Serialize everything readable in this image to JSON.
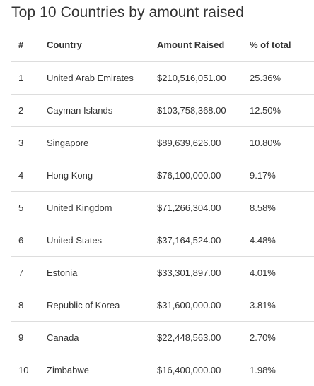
{
  "title": "Top 10 Countries by amount raised",
  "table": {
    "headers": [
      "#",
      "Country",
      "Amount Raised",
      "% of total"
    ],
    "rows": [
      [
        "1",
        "United Arab Emirates",
        "$210,516,051.00",
        "25.36%"
      ],
      [
        "2",
        "Cayman Islands",
        "$103,758,368.00",
        "12.50%"
      ],
      [
        "3",
        "Singapore",
        "$89,639,626.00",
        "10.80%"
      ],
      [
        "4",
        "Hong Kong",
        "$76,100,000.00",
        "9.17%"
      ],
      [
        "5",
        "United Kingdom",
        "$71,266,304.00",
        "8.58%"
      ],
      [
        "6",
        "United States",
        "$37,164,524.00",
        "4.48%"
      ],
      [
        "7",
        "Estonia",
        "$33,301,897.00",
        "4.01%"
      ],
      [
        "8",
        "Republic of Korea",
        "$31,600,000.00",
        "3.81%"
      ],
      [
        "9",
        "Canada",
        "$22,448,563.00",
        "2.70%"
      ],
      [
        "10",
        "Zimbabwe",
        "$16,400,000.00",
        "1.98%"
      ]
    ]
  }
}
